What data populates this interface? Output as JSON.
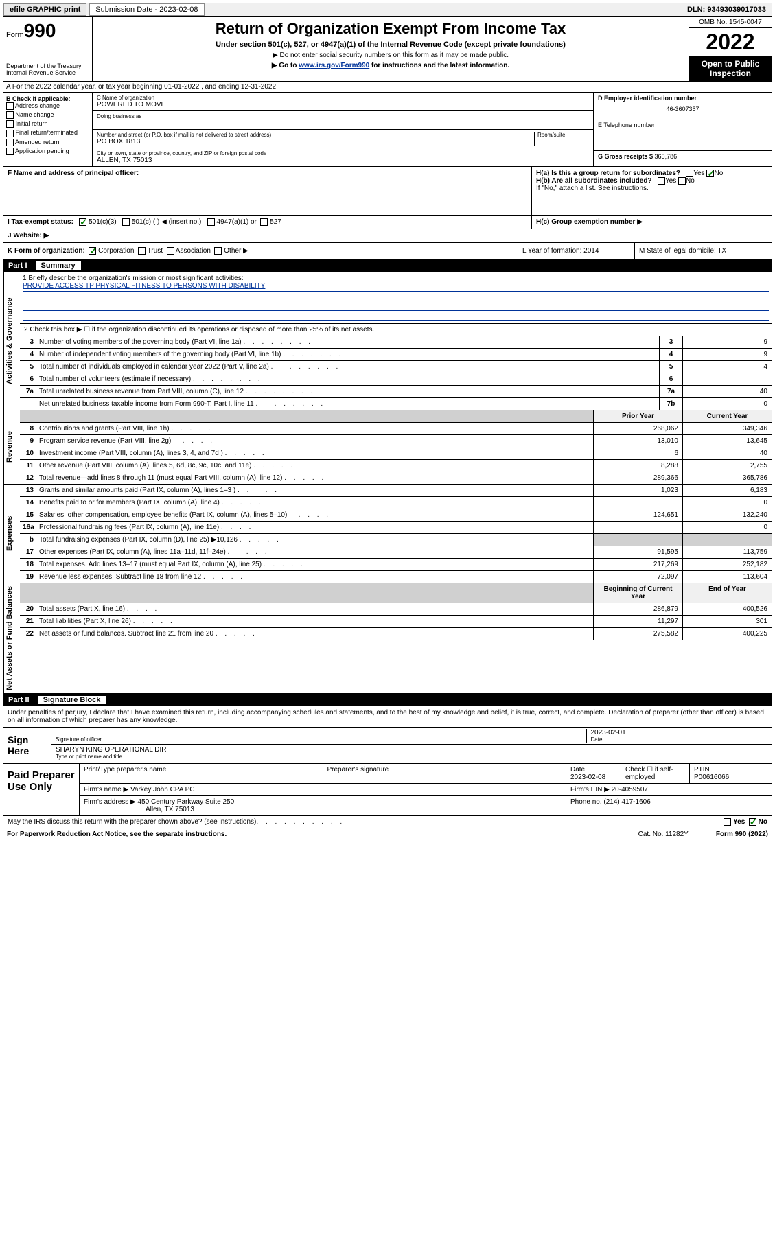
{
  "topbar": {
    "efile": "efile GRAPHIC print",
    "sub_label": "Submission Date - 2023-02-08",
    "dln": "DLN: 93493039017033"
  },
  "header": {
    "form_word": "Form",
    "form_num": "990",
    "dept": "Department of the Treasury Internal Revenue Service",
    "title": "Return of Organization Exempt From Income Tax",
    "sub1": "Under section 501(c), 527, or 4947(a)(1) of the Internal Revenue Code (except private foundations)",
    "sub2": "▶ Do not enter social security numbers on this form as it may be made public.",
    "sub3_pre": "▶ Go to ",
    "sub3_link": "www.irs.gov/Form990",
    "sub3_post": " for instructions and the latest information.",
    "omb": "OMB No. 1545-0047",
    "year": "2022",
    "open": "Open to Public Inspection"
  },
  "row_a": "A For the 2022 calendar year, or tax year beginning 01-01-2022  , and ending 12-31-2022",
  "col_b": {
    "hdr": "B Check if applicable:",
    "items": [
      "Address change",
      "Name change",
      "Initial return",
      "Final return/terminated",
      "Amended return",
      "Application pending"
    ]
  },
  "col_c": {
    "name_lbl": "C Name of organization",
    "name": "POWERED TO MOVE",
    "dba_lbl": "Doing business as",
    "addr_lbl": "Number and street (or P.O. box if mail is not delivered to street address)",
    "room_lbl": "Room/suite",
    "addr": "PO BOX 1813",
    "city_lbl": "City or town, state or province, country, and ZIP or foreign postal code",
    "city": "ALLEN, TX  75013",
    "f_lbl": "F Name and address of principal officer:"
  },
  "col_de": {
    "d_lbl": "D Employer identification number",
    "d_val": "46-3607357",
    "e_lbl": "E Telephone number",
    "g_lbl": "G Gross receipts $ ",
    "g_val": "365,786"
  },
  "row_h": {
    "ha": "H(a)  Is this a group return for subordinates?",
    "hb": "H(b)  Are all subordinates included?",
    "hb_note": "If \"No,\" attach a list. See instructions.",
    "hc": "H(c)  Group exemption number ▶"
  },
  "row_i": {
    "lbl": "I   Tax-exempt status:",
    "o1": "501(c)(3)",
    "o2": "501(c) (   ) ◀ (insert no.)",
    "o3": "4947(a)(1) or",
    "o4": "527"
  },
  "row_j": "J   Website: ▶",
  "row_k": {
    "lbl": "K Form of organization:",
    "o1": "Corporation",
    "o2": "Trust",
    "o3": "Association",
    "o4": "Other ▶",
    "l": "L Year of formation: 2014",
    "m": "M State of legal domicile: TX"
  },
  "part1": {
    "num": "Part I",
    "title": "Summary"
  },
  "mission": {
    "lbl": "1   Briefly describe the organization's mission or most significant activities:",
    "txt": "PROVIDE ACCESS TP PHYSICAL FITNESS TO PERSONS WITH DISABILITY"
  },
  "line2": "2   Check this box ▶ ☐  if the organization discontinued its operations or disposed of more than 25% of its net assets.",
  "sidetabs": {
    "gov": "Activities & Governance",
    "rev": "Revenue",
    "exp": "Expenses",
    "net": "Net Assets or Fund Balances"
  },
  "gov_rows": [
    {
      "n": "3",
      "t": "Number of voting members of the governing body (Part VI, line 1a)",
      "box": "3",
      "v": "9"
    },
    {
      "n": "4",
      "t": "Number of independent voting members of the governing body (Part VI, line 1b)",
      "box": "4",
      "v": "9"
    },
    {
      "n": "5",
      "t": "Total number of individuals employed in calendar year 2022 (Part V, line 2a)",
      "box": "5",
      "v": "4"
    },
    {
      "n": "6",
      "t": "Total number of volunteers (estimate if necessary)",
      "box": "6",
      "v": ""
    },
    {
      "n": "7a",
      "t": "Total unrelated business revenue from Part VIII, column (C), line 12",
      "box": "7a",
      "v": "40"
    },
    {
      "n": "",
      "t": "Net unrelated business taxable income from Form 990-T, Part I, line 11",
      "box": "7b",
      "v": "0"
    }
  ],
  "rev_hdr": {
    "py": "Prior Year",
    "cy": "Current Year"
  },
  "rev_rows": [
    {
      "n": "8",
      "t": "Contributions and grants (Part VIII, line 1h)",
      "py": "268,062",
      "cy": "349,346"
    },
    {
      "n": "9",
      "t": "Program service revenue (Part VIII, line 2g)",
      "py": "13,010",
      "cy": "13,645"
    },
    {
      "n": "10",
      "t": "Investment income (Part VIII, column (A), lines 3, 4, and 7d )",
      "py": "6",
      "cy": "40"
    },
    {
      "n": "11",
      "t": "Other revenue (Part VIII, column (A), lines 5, 6d, 8c, 9c, 10c, and 11e)",
      "py": "8,288",
      "cy": "2,755"
    },
    {
      "n": "12",
      "t": "Total revenue—add lines 8 through 11 (must equal Part VIII, column (A), line 12)",
      "py": "289,366",
      "cy": "365,786"
    }
  ],
  "exp_rows": [
    {
      "n": "13",
      "t": "Grants and similar amounts paid (Part IX, column (A), lines 1–3 )",
      "py": "1,023",
      "cy": "6,183"
    },
    {
      "n": "14",
      "t": "Benefits paid to or for members (Part IX, column (A), line 4)",
      "py": "",
      "cy": "0"
    },
    {
      "n": "15",
      "t": "Salaries, other compensation, employee benefits (Part IX, column (A), lines 5–10)",
      "py": "124,651",
      "cy": "132,240"
    },
    {
      "n": "16a",
      "t": "Professional fundraising fees (Part IX, column (A), line 11e)",
      "py": "",
      "cy": "0"
    },
    {
      "n": "b",
      "t": "Total fundraising expenses (Part IX, column (D), line 25) ▶10,126",
      "py": "",
      "cy": "",
      "shade": true
    },
    {
      "n": "17",
      "t": "Other expenses (Part IX, column (A), lines 11a–11d, 11f–24e)",
      "py": "91,595",
      "cy": "113,759"
    },
    {
      "n": "18",
      "t": "Total expenses. Add lines 13–17 (must equal Part IX, column (A), line 25)",
      "py": "217,269",
      "cy": "252,182"
    },
    {
      "n": "19",
      "t": "Revenue less expenses. Subtract line 18 from line 12",
      "py": "72,097",
      "cy": "113,604"
    }
  ],
  "net_hdr": {
    "py": "Beginning of Current Year",
    "cy": "End of Year"
  },
  "net_rows": [
    {
      "n": "20",
      "t": "Total assets (Part X, line 16)",
      "py": "286,879",
      "cy": "400,526"
    },
    {
      "n": "21",
      "t": "Total liabilities (Part X, line 26)",
      "py": "11,297",
      "cy": "301"
    },
    {
      "n": "22",
      "t": "Net assets or fund balances. Subtract line 21 from line 20",
      "py": "275,582",
      "cy": "400,225"
    }
  ],
  "part2": {
    "num": "Part II",
    "title": "Signature Block"
  },
  "sig": {
    "decl": "Under penalties of perjury, I declare that I have examined this return, including accompanying schedules and statements, and to the best of my knowledge and belief, it is true, correct, and complete. Declaration of preparer (other than officer) is based on all information of which preparer has any knowledge.",
    "side": "Sign Here",
    "sig_lbl": "Signature of officer",
    "date_lbl": "Date",
    "date": "2023-02-01",
    "name": "SHARYN KING  OPERATIONAL DIR",
    "name_lbl": "Type or print name and title"
  },
  "paid": {
    "side": "Paid Preparer Use Only",
    "h1": "Print/Type preparer's name",
    "h2": "Preparer's signature",
    "h3": "Date",
    "h3v": "2023-02-08",
    "h4": "Check ☐ if self-employed",
    "h5": "PTIN",
    "h5v": "P00616066",
    "firm_lbl": "Firm's name    ▶",
    "firm": "Varkey John CPA PC",
    "ein_lbl": "Firm's EIN ▶",
    "ein": "20-4059507",
    "addr_lbl": "Firm's address ▶",
    "addr1": "450 Century Parkway Suite 250",
    "addr2": "Allen, TX  75013",
    "phone_lbl": "Phone no. ",
    "phone": "(214) 417-1606"
  },
  "discuss": "May the IRS discuss this return with the preparer shown above? (see instructions)",
  "bottom": {
    "l": "For Paperwork Reduction Act Notice, see the separate instructions.",
    "m": "Cat. No. 11282Y",
    "r": "Form 990 (2022)"
  },
  "yesno": {
    "yes": "Yes",
    "no": "No"
  }
}
